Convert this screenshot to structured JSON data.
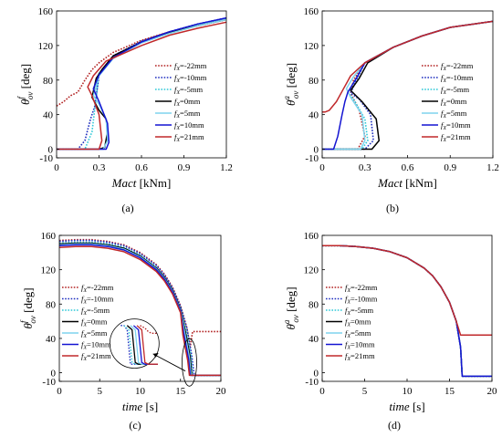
{
  "figure": {
    "legend_labels": [
      "=-22mm",
      "=-10mm",
      "=-5mm",
      "=0mm",
      "=5mm",
      "=10mm",
      "=21mm"
    ],
    "legend_prefix": "f",
    "legend_prefix_sub": "X",
    "series_colors": [
      "#b22222",
      "#1f2fbf",
      "#2ec8d8",
      "#000000",
      "#7fd4ee",
      "#1414d2",
      "#c0282a"
    ],
    "series_dash": [
      "dot",
      "dot",
      "dot",
      "solid",
      "solid",
      "solid",
      "solid"
    ]
  },
  "chart_data": [
    {
      "id": "a",
      "type": "line",
      "caption": "(a)",
      "xlabel_main": "Mact",
      "xlabel_unit": " [kNm]",
      "ylabel_main": "θ",
      "ylabel_sup": "f",
      "ylabel_sub": "ov",
      "ylabel_unit": " [deg]",
      "xlim": [
        0,
        1.2
      ],
      "ylim": [
        -10,
        160
      ],
      "xticks": [
        "0",
        "0.3",
        "0.6",
        "0.9",
        "1.2"
      ],
      "xtick_values": [
        0,
        0.3,
        0.6,
        0.9,
        1.2
      ],
      "yticks": [
        "-10",
        "0",
        "40",
        "80",
        "120",
        "160"
      ],
      "ytick_values": [
        -10,
        0,
        40,
        80,
        120,
        160
      ],
      "grid": false,
      "legend_position": "bottom-right",
      "series": [
        {
          "name": "fX=-22mm",
          "x": [
            0.0,
            0.05,
            0.1,
            0.15,
            0.2,
            0.25,
            0.3,
            0.4,
            0.6,
            0.8,
            1.0,
            1.2
          ],
          "y": [
            50,
            55,
            62,
            66,
            80,
            92,
            100,
            112,
            126,
            136,
            143,
            150
          ]
        },
        {
          "name": "fX=-10mm",
          "x": [
            0.0,
            0.15,
            0.2,
            0.24,
            0.27,
            0.3,
            0.4,
            0.6,
            0.8,
            1.0,
            1.2
          ],
          "y": [
            0,
            0,
            10,
            35,
            50,
            85,
            108,
            125,
            136,
            145,
            152
          ]
        },
        {
          "name": "fX=-5mm",
          "x": [
            0.0,
            0.2,
            0.25,
            0.28,
            0.3,
            0.4,
            0.6,
            0.8,
            1.0,
            1.2
          ],
          "y": [
            0,
            0,
            20,
            60,
            88,
            107,
            124,
            135,
            144,
            151
          ]
        },
        {
          "name": "fX=0mm",
          "x": [
            0.0,
            0.3,
            0.34,
            0.36,
            0.35,
            0.3,
            0.25,
            0.28,
            0.32,
            0.4,
            0.6,
            0.8,
            1.0,
            1.2
          ],
          "y": [
            0,
            0,
            2,
            20,
            35,
            45,
            60,
            82,
            92,
            108,
            124,
            135,
            143,
            150
          ]
        },
        {
          "name": "fX=5mm",
          "x": [
            0.0,
            0.33,
            0.36,
            0.35,
            0.3,
            0.26,
            0.3,
            0.4,
            0.6,
            0.8,
            1.0,
            1.2
          ],
          "y": [
            0,
            0,
            10,
            35,
            52,
            62,
            85,
            105,
            123,
            134,
            143,
            150
          ]
        },
        {
          "name": "fX=10mm",
          "x": [
            0.0,
            0.35,
            0.37,
            0.36,
            0.3,
            0.26,
            0.3,
            0.4,
            0.6,
            0.8,
            1.0,
            1.2
          ],
          "y": [
            0,
            0,
            8,
            30,
            55,
            70,
            86,
            106,
            124,
            136,
            145,
            152
          ]
        },
        {
          "name": "fX=21mm",
          "x": [
            0.0,
            0.3,
            0.32,
            0.3,
            0.25,
            0.22,
            0.26,
            0.35,
            0.6,
            0.8,
            1.0,
            1.2
          ],
          "y": [
            0,
            0,
            10,
            40,
            62,
            72,
            85,
            102,
            120,
            132,
            140,
            147
          ]
        }
      ]
    },
    {
      "id": "b",
      "type": "line",
      "caption": "(b)",
      "xlabel_main": "Mact",
      "xlabel_unit": " [kNm]",
      "ylabel_main": "θ",
      "ylabel_sup": "a",
      "ylabel_sub": "ov",
      "ylabel_unit": " [deg]",
      "xlim": [
        0,
        1.2
      ],
      "ylim": [
        -10,
        160
      ],
      "xticks": [
        "0",
        "0.3",
        "0.6",
        "0.9",
        "1.2"
      ],
      "xtick_values": [
        0,
        0.3,
        0.6,
        0.9,
        1.2
      ],
      "yticks": [
        "-10",
        "0",
        "40",
        "80",
        "120",
        "160"
      ],
      "ytick_values": [
        -10,
        0,
        40,
        80,
        120,
        160
      ],
      "grid": false,
      "legend_position": "bottom-right",
      "series": [
        {
          "name": "fX=-22mm",
          "x": [
            0.0,
            0.25,
            0.3,
            0.26,
            0.2,
            0.22,
            0.3,
            0.5,
            0.7,
            0.9,
            1.2
          ],
          "y": [
            0,
            0,
            15,
            45,
            65,
            80,
            100,
            118,
            131,
            141,
            148
          ]
        },
        {
          "name": "fX=-10mm",
          "x": [
            0.0,
            0.3,
            0.36,
            0.34,
            0.26,
            0.2,
            0.24,
            0.3,
            0.5,
            0.7,
            0.9,
            1.2
          ],
          "y": [
            0,
            0,
            10,
            40,
            58,
            65,
            80,
            100,
            118,
            131,
            141,
            148
          ]
        },
        {
          "name": "fX=-5mm",
          "x": [
            0.0,
            0.28,
            0.32,
            0.3,
            0.22,
            0.18,
            0.24,
            0.3,
            0.5,
            0.7,
            0.9,
            1.2
          ],
          "y": [
            0,
            0,
            10,
            35,
            58,
            66,
            82,
            100,
            118,
            131,
            141,
            148
          ]
        },
        {
          "name": "fX=0mm",
          "x": [
            0.0,
            0.35,
            0.4,
            0.38,
            0.28,
            0.2,
            0.26,
            0.32,
            0.5,
            0.7,
            0.9,
            1.2
          ],
          "y": [
            0,
            0,
            10,
            35,
            55,
            68,
            82,
            100,
            118,
            131,
            141,
            148
          ]
        },
        {
          "name": "fX=5mm",
          "x": [
            0.0,
            0.27,
            0.3,
            0.28,
            0.2,
            0.17,
            0.22,
            0.3,
            0.5,
            0.7,
            0.9,
            1.2
          ],
          "y": [
            0,
            0,
            10,
            40,
            60,
            70,
            84,
            100,
            118,
            131,
            141,
            148
          ]
        },
        {
          "name": "fX=10mm",
          "x": [
            0.0,
            0.08,
            0.11,
            0.14,
            0.16,
            0.18,
            0.24,
            0.3,
            0.5,
            0.7,
            0.9,
            1.2
          ],
          "y": [
            0,
            0,
            15,
            40,
            55,
            66,
            82,
            100,
            118,
            131,
            141,
            148
          ]
        },
        {
          "name": "fX=21mm",
          "x": [
            0.0,
            0.02,
            0.05,
            0.1,
            0.15,
            0.2,
            0.3,
            0.5,
            0.7,
            0.9,
            1.2
          ],
          "y": [
            43,
            43,
            45,
            55,
            70,
            85,
            100,
            118,
            131,
            141,
            148
          ]
        }
      ]
    },
    {
      "id": "c",
      "type": "line",
      "caption": "(c)",
      "xlabel_main": "time",
      "xlabel_unit": " [s]",
      "ylabel_main": "θ",
      "ylabel_sup": "f",
      "ylabel_sub": "ov",
      "ylabel_unit": " [deg]",
      "xlim": [
        0,
        20
      ],
      "ylim": [
        -10,
        160
      ],
      "xticks": [
        "0",
        "5",
        "10",
        "15",
        "20"
      ],
      "xtick_values": [
        0,
        5,
        10,
        15,
        20
      ],
      "yticks": [
        "-10",
        "0",
        "40",
        "80",
        "120",
        "160"
      ],
      "ytick_values": [
        -10,
        0,
        40,
        80,
        120,
        160
      ],
      "grid": false,
      "legend_position": "left",
      "series": [
        {
          "name": "fX=-22mm",
          "x": [
            0,
            2,
            4,
            6,
            8,
            10,
            12,
            13,
            14,
            15,
            15.8,
            16.2,
            16.5,
            20
          ],
          "y": [
            154,
            155,
            155,
            153,
            149,
            140,
            126,
            115,
            100,
            78,
            52,
            30,
            48,
            48
          ]
        },
        {
          "name": "fX=-10mm",
          "x": [
            0,
            2,
            4,
            6,
            8,
            10,
            12,
            13,
            14,
            15,
            15.8,
            16.4,
            16.7,
            20
          ],
          "y": [
            153,
            154,
            154,
            152,
            148,
            139,
            125,
            114,
            99,
            77,
            52,
            20,
            -3,
            -3
          ]
        },
        {
          "name": "fX=-5mm",
          "x": [
            0,
            2,
            4,
            6,
            8,
            10,
            12,
            13,
            14,
            15,
            15.7,
            16.3,
            16.5,
            20
          ],
          "y": [
            151,
            152,
            152,
            150,
            146,
            137,
            123,
            112,
            97,
            75,
            50,
            20,
            -3,
            -3
          ]
        },
        {
          "name": "fX=0mm",
          "x": [
            0,
            2,
            4,
            6,
            8,
            10,
            12,
            13,
            14,
            15,
            15.6,
            16.2,
            16.4,
            20
          ],
          "y": [
            150,
            151,
            151,
            149,
            145,
            136,
            122,
            111,
            96,
            74,
            48,
            18,
            -3,
            -3
          ]
        },
        {
          "name": "fX=5mm",
          "x": [
            0,
            2,
            4,
            6,
            8,
            10,
            12,
            13,
            14,
            15,
            15.5,
            16.1,
            16.3,
            20
          ],
          "y": [
            149,
            150,
            150,
            148,
            144,
            135,
            121,
            110,
            95,
            73,
            48,
            18,
            -3,
            -3
          ]
        },
        {
          "name": "fX=10mm",
          "x": [
            0,
            2,
            4,
            6,
            8,
            10,
            12,
            13,
            14,
            15,
            15.4,
            16.0,
            16.2,
            20
          ],
          "y": [
            148,
            149,
            149,
            147,
            143,
            134,
            120,
            109,
            94,
            72,
            46,
            16,
            -3,
            -3
          ]
        },
        {
          "name": "fX=21mm",
          "x": [
            0,
            2,
            4,
            6,
            8,
            10,
            12,
            13,
            14,
            15,
            15.3,
            15.9,
            16.1,
            20
          ],
          "y": [
            146,
            147,
            147,
            145,
            141,
            132,
            118,
            107,
            92,
            70,
            44,
            14,
            -3,
            -3
          ]
        }
      ]
    },
    {
      "id": "d",
      "type": "line",
      "caption": "(d)",
      "xlabel_main": "time",
      "xlabel_unit": " [s]",
      "ylabel_main": "θ",
      "ylabel_sup": "a",
      "ylabel_sub": "ov",
      "ylabel_unit": " [deg]",
      "xlim": [
        0,
        20
      ],
      "ylim": [
        -10,
        160
      ],
      "xticks": [
        "0",
        "5",
        "10",
        "15",
        "20"
      ],
      "xtick_values": [
        0,
        5,
        10,
        15,
        20
      ],
      "yticks": [
        "-10",
        "0",
        "40",
        "80",
        "120",
        "160"
      ],
      "ytick_values": [
        -10,
        0,
        40,
        80,
        120,
        160
      ],
      "grid": false,
      "legend_position": "left",
      "series": [
        {
          "name": "fX=-22mm",
          "x": [
            0,
            2,
            4,
            6,
            8,
            10,
            12,
            13,
            14,
            15,
            15.8,
            16.3,
            16.5,
            20
          ],
          "y": [
            148,
            148,
            147,
            145,
            141,
            134,
            122,
            113,
            100,
            82,
            60,
            30,
            -4,
            -4
          ]
        },
        {
          "name": "fX=-10mm",
          "x": [
            0,
            2,
            4,
            6,
            8,
            10,
            12,
            13,
            14,
            15,
            15.8,
            16.3,
            16.5,
            20
          ],
          "y": [
            148,
            148,
            147,
            145,
            141,
            134,
            122,
            113,
            100,
            82,
            60,
            30,
            -4,
            -4
          ]
        },
        {
          "name": "fX=-5mm",
          "x": [
            0,
            2,
            4,
            6,
            8,
            10,
            12,
            13,
            14,
            15,
            15.8,
            16.3,
            16.5,
            20
          ],
          "y": [
            148,
            148,
            147,
            145,
            141,
            134,
            122,
            113,
            100,
            82,
            60,
            30,
            -4,
            -4
          ]
        },
        {
          "name": "fX=0mm",
          "x": [
            0,
            2,
            4,
            6,
            8,
            10,
            12,
            13,
            14,
            15,
            15.8,
            16.3,
            16.5,
            20
          ],
          "y": [
            148,
            148,
            147,
            145,
            141,
            134,
            122,
            113,
            100,
            82,
            60,
            30,
            -4,
            -4
          ]
        },
        {
          "name": "fX=5mm",
          "x": [
            0,
            2,
            4,
            6,
            8,
            10,
            12,
            13,
            14,
            15,
            15.8,
            16.3,
            16.5,
            20
          ],
          "y": [
            148,
            148,
            147,
            145,
            141,
            134,
            122,
            113,
            100,
            82,
            60,
            30,
            -4,
            -4
          ]
        },
        {
          "name": "fX=10mm",
          "x": [
            0,
            2,
            4,
            6,
            8,
            10,
            12,
            13,
            14,
            15,
            15.8,
            16.3,
            16.5,
            20
          ],
          "y": [
            148,
            148,
            147,
            145,
            141,
            134,
            122,
            113,
            100,
            82,
            60,
            30,
            -4,
            -4
          ]
        },
        {
          "name": "fX=21mm",
          "x": [
            0,
            2,
            4,
            6,
            8,
            10,
            12,
            13,
            14,
            15,
            15.8,
            16.3,
            16.5,
            20
          ],
          "y": [
            148,
            148,
            147,
            145,
            141,
            134,
            122,
            113,
            100,
            82,
            60,
            44,
            44,
            44
          ]
        }
      ]
    }
  ]
}
